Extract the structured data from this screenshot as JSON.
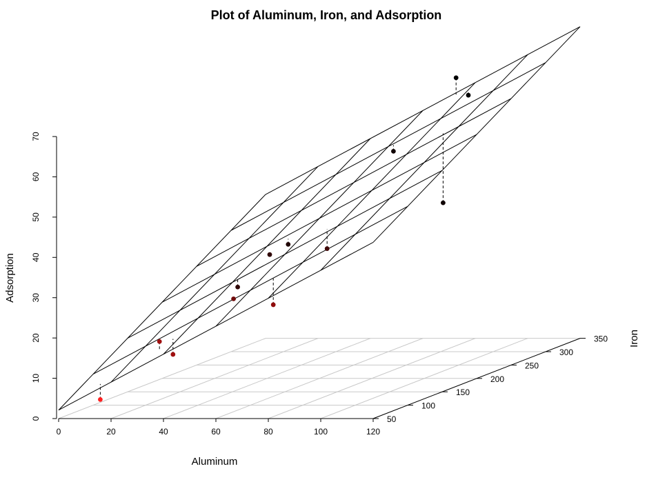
{
  "chart_data": {
    "type": "scatter",
    "subtype": "3d-scatter-with-regression-plane",
    "title": "Plot of Aluminum, Iron, and Adsorption",
    "xlabel": "Aluminum",
    "ylabel": "Iron",
    "zlabel": "Adsorption",
    "xlim": [
      0,
      120
    ],
    "ylim": [
      50,
      350
    ],
    "zlim": [
      0,
      70
    ],
    "x_ticks": [
      0,
      20,
      40,
      60,
      80,
      100,
      120
    ],
    "y_ticks": [
      50,
      100,
      150,
      200,
      250,
      300,
      350
    ],
    "z_ticks": [
      0,
      10,
      20,
      30,
      40,
      50,
      60,
      70
    ],
    "grid": true,
    "plane": {
      "intercept": -3.5,
      "coef_aluminum": 0.347,
      "coef_iron": 0.112
    },
    "points": [
      {
        "aluminum": 13,
        "iron": 61,
        "adsorption": 4,
        "color": "#ff2020"
      },
      {
        "aluminum": 34,
        "iron": 67,
        "adsorption": 18,
        "color": "#a01010"
      },
      {
        "aluminum": 36,
        "iron": 79,
        "adsorption": 14,
        "color": "#a01010"
      },
      {
        "aluminum": 42,
        "iron": 150,
        "adsorption": 26,
        "color": "#300808"
      },
      {
        "aluminum": 52,
        "iron": 106,
        "adsorption": 26,
        "color": "#700c0c"
      },
      {
        "aluminum": 50,
        "iron": 166,
        "adsorption": 33,
        "color": "#300808"
      },
      {
        "aluminum": 51,
        "iron": 189,
        "adsorption": 34,
        "color": "#200505"
      },
      {
        "aluminum": 69,
        "iron": 99,
        "adsorption": 25,
        "color": "#900c0c"
      },
      {
        "aluminum": 74,
        "iron": 158,
        "adsorption": 35,
        "color": "#400808"
      },
      {
        "aluminum": 63,
        "iron": 296,
        "adsorption": 50,
        "color": "#100303"
      },
      {
        "aluminum": 93,
        "iron": 254,
        "adsorption": 40,
        "color": "#100303"
      },
      {
        "aluminum": 74,
        "iron": 345,
        "adsorption": 65,
        "color": "#000000"
      },
      {
        "aluminum": 80,
        "iron": 340,
        "adsorption": 61,
        "color": "#000000"
      }
    ]
  }
}
